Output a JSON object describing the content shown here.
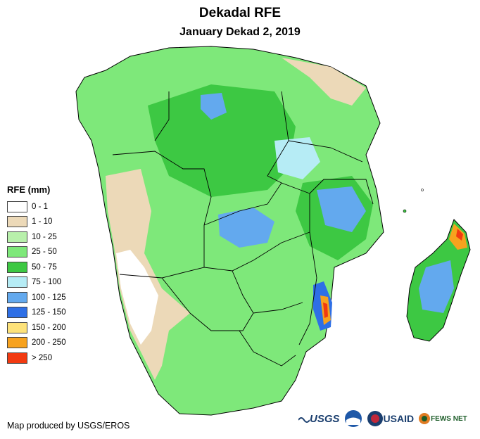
{
  "header": {
    "title": "Dekadal RFE",
    "subtitle": "January Dekad 2, 2019"
  },
  "legend": {
    "title": "RFE (mm)",
    "items": [
      {
        "label": "0 - 1",
        "color": "#ffffff"
      },
      {
        "label": "1 - 10",
        "color": "#ecd9b8"
      },
      {
        "label": "10 - 25",
        "color": "#b8f0ab"
      },
      {
        "label": "25 - 50",
        "color": "#7ee87a"
      },
      {
        "label": "50 - 75",
        "color": "#3dc843"
      },
      {
        "label": "75 - 100",
        "color": "#b6ecf5"
      },
      {
        "label": "100 - 125",
        "color": "#63a9ee"
      },
      {
        "label": "125 - 150",
        "color": "#2e6fe6"
      },
      {
        "label": "150 - 200",
        "color": "#fde27a"
      },
      {
        "label": "200 - 250",
        "color": "#f7a21e"
      },
      {
        "label": "> 250",
        "color": "#f23a11"
      }
    ]
  },
  "credit": "Map produced by USGS/EROS",
  "logos": {
    "usgs": "USGS",
    "noaa": "NOAA",
    "usaid": "USAID",
    "fews": "FEWS NET"
  }
}
